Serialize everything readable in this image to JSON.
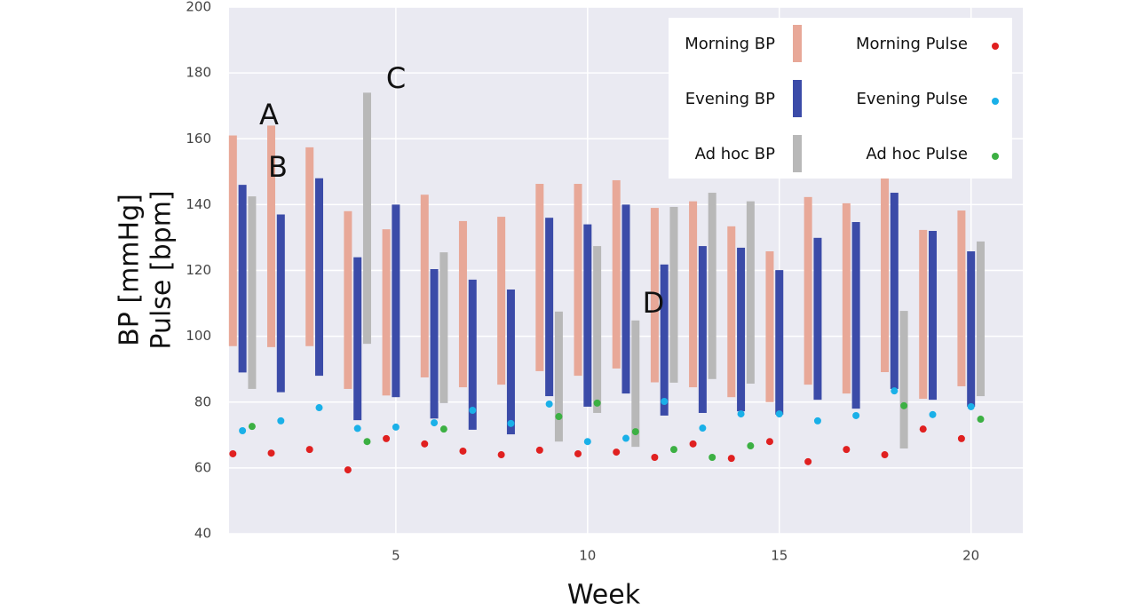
{
  "chart_data": {
    "type": "range-bar",
    "xlabel": "Week",
    "ylabel": [
      "BP [mmHg]",
      "Pulse [bpm]"
    ],
    "x": [
      1,
      2,
      3,
      4,
      5,
      6,
      7,
      8,
      9,
      10,
      11,
      12,
      13,
      14,
      15,
      16,
      17,
      18,
      19,
      20
    ],
    "xlim": [
      0.65,
      21.35
    ],
    "xticks": [
      5,
      10,
      15,
      20
    ],
    "ylim": [
      40,
      200
    ],
    "yticks": [
      40,
      60,
      80,
      100,
      120,
      140,
      160,
      180,
      200
    ],
    "grid": true,
    "legend": "upper right",
    "series": [
      {
        "name": "Morning BP",
        "kind": "range",
        "color": "#e8a898",
        "values": [
          [
            97,
            161
          ],
          [
            96.7,
            164
          ],
          [
            97,
            157.4
          ],
          [
            84,
            138
          ],
          [
            82,
            132.5
          ],
          [
            87.5,
            143
          ],
          [
            84.5,
            135
          ],
          [
            85.3,
            136.3
          ],
          [
            89.4,
            146.3
          ],
          [
            88,
            146.3
          ],
          [
            90.2,
            147.4
          ],
          [
            86,
            139
          ],
          [
            84.5,
            141
          ],
          [
            81.5,
            133.4
          ],
          [
            80,
            125.8
          ],
          [
            85.3,
            142.3
          ],
          [
            82.6,
            140.4
          ],
          [
            89.1,
            149
          ],
          [
            81,
            132.3
          ],
          [
            84.8,
            138.2
          ]
        ]
      },
      {
        "name": "Evening BP",
        "kind": "range",
        "color": "#3b4ba8",
        "values": [
          [
            89,
            146
          ],
          [
            83,
            137
          ],
          [
            88,
            148
          ],
          [
            74.5,
            124
          ],
          [
            81.5,
            140
          ],
          [
            75,
            120.4
          ],
          [
            71.6,
            117.2
          ],
          [
            70.2,
            114.2
          ],
          [
            81.8,
            136
          ],
          [
            78.6,
            134
          ],
          [
            82.6,
            140
          ],
          [
            75.9,
            121.8
          ],
          [
            76.7,
            127.4
          ],
          [
            77.2,
            126.9
          ],
          [
            76.2,
            120.1
          ],
          [
            80.7,
            129.9
          ],
          [
            78,
            134.7
          ],
          [
            84,
            143.6
          ],
          [
            80.7,
            132
          ],
          [
            78.6,
            125.8
          ]
        ]
      },
      {
        "name": "Ad hoc BP",
        "kind": "range",
        "color": "#b8b8b8",
        "values": [
          [
            84,
            142.5
          ],
          null,
          null,
          [
            97.7,
            174
          ],
          null,
          [
            79.7,
            125.5
          ],
          null,
          null,
          [
            68,
            107.5
          ],
          [
            76.7,
            127.4
          ],
          [
            66.4,
            104.8
          ],
          [
            85.9,
            139.3
          ],
          [
            87,
            143.6
          ],
          [
            85.6,
            141
          ],
          null,
          null,
          null,
          [
            65.9,
            107.7
          ],
          null,
          [
            81.8,
            128.8
          ]
        ]
      },
      {
        "name": "Morning Pulse",
        "kind": "dot",
        "color": "#e02020",
        "values": [
          64.3,
          64.5,
          65.6,
          59.4,
          68.9,
          67.3,
          65.1,
          64,
          65.4,
          64.3,
          64.8,
          63.2,
          67.3,
          62.9,
          68,
          61.9,
          65.6,
          64,
          71.8,
          68.9
        ]
      },
      {
        "name": "Evening Pulse",
        "kind": "dot",
        "color": "#1ab0e8",
        "values": [
          71.3,
          74.3,
          78.3,
          72,
          72.4,
          73.7,
          77.5,
          73.5,
          79.4,
          68,
          69,
          80.2,
          72.1,
          76.4,
          76.4,
          74.3,
          75.9,
          83.4,
          76.2,
          78.6
        ]
      },
      {
        "name": "Ad hoc Pulse",
        "kind": "dot",
        "color": "#3cb043",
        "values": [
          72.6,
          null,
          null,
          68,
          null,
          71.8,
          null,
          null,
          75.6,
          79.7,
          71,
          65.6,
          63.2,
          66.7,
          null,
          null,
          null,
          78.9,
          null,
          74.8
        ]
      }
    ],
    "annotations": [
      "A",
      "B",
      "C",
      "D"
    ]
  }
}
